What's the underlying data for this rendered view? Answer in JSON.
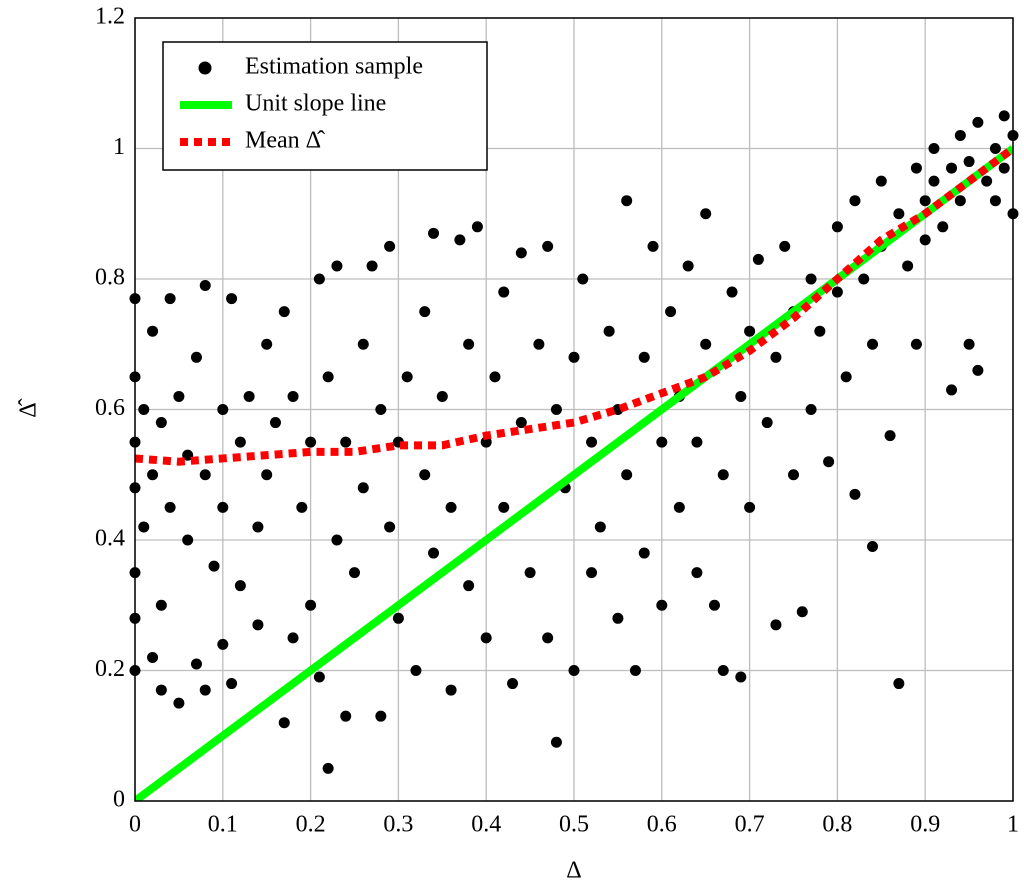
{
  "chart_data": {
    "type": "scatter",
    "xlabel": "Δ",
    "ylabel": "Δ̂",
    "xlim": [
      0,
      1
    ],
    "ylim": [
      0,
      1.2
    ],
    "xticks": [
      0,
      0.1,
      0.2,
      0.3,
      0.4,
      0.5,
      0.6,
      0.7,
      0.8,
      0.9,
      1
    ],
    "yticks": [
      0,
      0.2,
      0.4,
      0.6,
      0.8,
      1,
      1.2
    ],
    "grid": true,
    "legend": "upper left",
    "series": [
      {
        "name": "Estimation sample",
        "type": "scatter",
        "color": "#000000",
        "x": [
          0,
          0,
          0,
          0,
          0,
          0,
          0,
          0.01,
          0.01,
          0.02,
          0.02,
          0.02,
          0.03,
          0.03,
          0.03,
          0.04,
          0.04,
          0.05,
          0.05,
          0.06,
          0.06,
          0.07,
          0.07,
          0.08,
          0.08,
          0.08,
          0.09,
          0.1,
          0.1,
          0.1,
          0.11,
          0.11,
          0.12,
          0.12,
          0.13,
          0.14,
          0.14,
          0.15,
          0.15,
          0.16,
          0.17,
          0.17,
          0.18,
          0.18,
          0.19,
          0.2,
          0.2,
          0.21,
          0.21,
          0.22,
          0.22,
          0.23,
          0.23,
          0.24,
          0.24,
          0.25,
          0.26,
          0.26,
          0.27,
          0.28,
          0.28,
          0.29,
          0.29,
          0.3,
          0.3,
          0.31,
          0.32,
          0.33,
          0.33,
          0.34,
          0.34,
          0.35,
          0.36,
          0.36,
          0.37,
          0.38,
          0.38,
          0.39,
          0.4,
          0.4,
          0.41,
          0.42,
          0.42,
          0.43,
          0.44,
          0.44,
          0.45,
          0.46,
          0.47,
          0.47,
          0.48,
          0.48,
          0.49,
          0.5,
          0.5,
          0.51,
          0.52,
          0.52,
          0.53,
          0.54,
          0.55,
          0.55,
          0.56,
          0.56,
          0.57,
          0.58,
          0.58,
          0.59,
          0.6,
          0.6,
          0.61,
          0.62,
          0.62,
          0.63,
          0.64,
          0.64,
          0.65,
          0.65,
          0.66,
          0.67,
          0.67,
          0.68,
          0.69,
          0.69,
          0.7,
          0.7,
          0.71,
          0.72,
          0.73,
          0.73,
          0.74,
          0.75,
          0.75,
          0.76,
          0.77,
          0.77,
          0.78,
          0.79,
          0.8,
          0.8,
          0.81,
          0.82,
          0.82,
          0.83,
          0.84,
          0.84,
          0.85,
          0.85,
          0.86,
          0.87,
          0.87,
          0.88,
          0.89,
          0.89,
          0.9,
          0.9,
          0.91,
          0.91,
          0.92,
          0.93,
          0.93,
          0.94,
          0.94,
          0.95,
          0.95,
          0.96,
          0.96,
          0.97,
          0.98,
          0.98,
          0.99,
          0.99,
          1,
          1
        ],
        "values": [
          0.77,
          0.2,
          0.65,
          0.55,
          0.48,
          0.35,
          0.28,
          0.6,
          0.42,
          0.72,
          0.5,
          0.22,
          0.17,
          0.58,
          0.3,
          0.77,
          0.45,
          0.15,
          0.62,
          0.4,
          0.53,
          0.21,
          0.68,
          0.79,
          0.17,
          0.5,
          0.36,
          0.6,
          0.24,
          0.45,
          0.18,
          0.77,
          0.55,
          0.33,
          0.62,
          0.42,
          0.27,
          0.7,
          0.5,
          0.58,
          0.75,
          0.12,
          0.25,
          0.62,
          0.45,
          0.55,
          0.3,
          0.8,
          0.19,
          0.05,
          0.65,
          0.82,
          0.4,
          0.13,
          0.55,
          0.35,
          0.7,
          0.48,
          0.82,
          0.13,
          0.6,
          0.85,
          0.42,
          0.28,
          0.55,
          0.65,
          0.2,
          0.75,
          0.5,
          0.87,
          0.38,
          0.62,
          0.17,
          0.45,
          0.86,
          0.7,
          0.33,
          0.88,
          0.55,
          0.25,
          0.65,
          0.78,
          0.45,
          0.18,
          0.84,
          0.58,
          0.35,
          0.7,
          0.85,
          0.25,
          0.09,
          0.6,
          0.48,
          0.2,
          0.68,
          0.8,
          0.55,
          0.35,
          0.42,
          0.72,
          0.28,
          0.6,
          0.92,
          0.5,
          0.2,
          0.68,
          0.38,
          0.85,
          0.55,
          0.3,
          0.75,
          0.45,
          0.62,
          0.82,
          0.35,
          0.55,
          0.7,
          0.9,
          0.3,
          0.5,
          0.2,
          0.78,
          0.19,
          0.62,
          0.45,
          0.72,
          0.83,
          0.58,
          0.68,
          0.27,
          0.85,
          0.75,
          0.5,
          0.29,
          0.8,
          0.6,
          0.72,
          0.52,
          0.88,
          0.78,
          0.65,
          0.92,
          0.47,
          0.8,
          0.39,
          0.7,
          0.95,
          0.85,
          0.56,
          0.9,
          0.18,
          0.82,
          0.97,
          0.7,
          0.92,
          0.86,
          1.0,
          0.95,
          0.88,
          0.97,
          0.63,
          1.02,
          0.92,
          0.7,
          0.98,
          1.04,
          0.66,
          0.95,
          1.0,
          0.92,
          1.05,
          0.97,
          1.02,
          0.9
        ]
      },
      {
        "name": "Unit slope line",
        "type": "line",
        "color": "#00ff00",
        "x": [
          0,
          1
        ],
        "values": [
          0,
          1
        ]
      },
      {
        "name": "Mean Δ̂",
        "type": "line",
        "dashed": true,
        "color": "#ff0000",
        "x": [
          0,
          0.05,
          0.1,
          0.15,
          0.2,
          0.25,
          0.3,
          0.35,
          0.4,
          0.45,
          0.5,
          0.55,
          0.6,
          0.65,
          0.7,
          0.75,
          0.8,
          0.85,
          0.9,
          0.95,
          1
        ],
        "values": [
          0.525,
          0.52,
          0.525,
          0.53,
          0.535,
          0.535,
          0.545,
          0.545,
          0.56,
          0.57,
          0.58,
          0.6,
          0.625,
          0.65,
          0.69,
          0.74,
          0.8,
          0.86,
          0.9,
          0.95,
          1.0
        ]
      }
    ]
  }
}
